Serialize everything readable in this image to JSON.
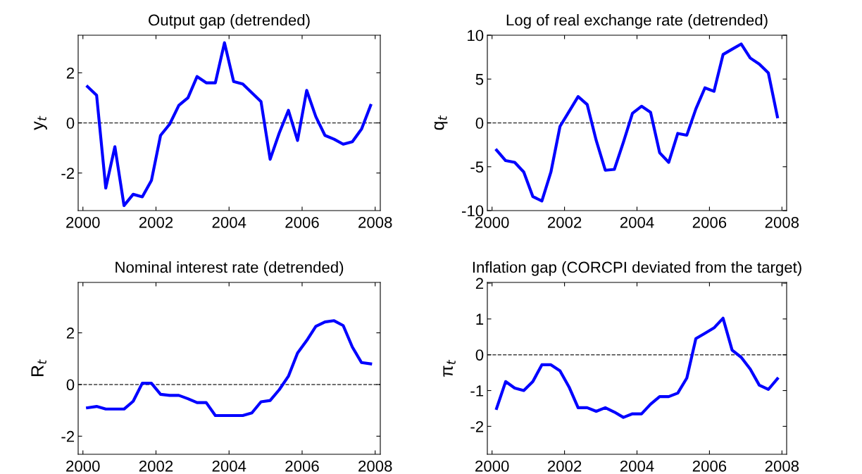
{
  "chart_data": [
    {
      "type": "line",
      "title": "Output gap (detrended)",
      "ylabel": "y$_{t}$",
      "x": [
        2000.125,
        2000.375,
        2000.625,
        2000.875,
        2001.125,
        2001.375,
        2001.625,
        2001.875,
        2002.125,
        2002.375,
        2002.625,
        2002.875,
        2003.125,
        2003.375,
        2003.625,
        2003.875,
        2004.125,
        2004.375,
        2004.625,
        2004.875,
        2005.125,
        2005.375,
        2005.625,
        2005.875,
        2006.125,
        2006.375,
        2006.625,
        2006.875,
        2007.125,
        2007.375,
        2007.625,
        2007.875
      ],
      "series": [
        {
          "color": "#0000ff",
          "values": [
            1.45,
            1.1,
            -2.6,
            -0.95,
            -3.3,
            -2.85,
            -2.95,
            -2.3,
            -0.5,
            -0.05,
            0.7,
            1.0,
            1.85,
            1.6,
            1.6,
            3.2,
            1.65,
            1.55,
            1.2,
            0.85,
            -1.45,
            -0.4,
            0.5,
            -0.7,
            1.3,
            0.25,
            -0.5,
            -0.65,
            -0.85,
            -0.75,
            -0.25,
            0.7
          ]
        }
      ],
      "xlim": [
        1999.87,
        2008.14
      ],
      "ylim": [
        -3.5,
        3.5
      ],
      "xticks": [
        2000,
        2002,
        2004,
        2006,
        2008
      ],
      "yticks": [
        -2,
        0,
        2
      ],
      "ref_lines": [
        {
          "axis": "y",
          "value": 0,
          "color": "#404040",
          "line_style": "dashed"
        }
      ],
      "grid": false,
      "line_style": "solid",
      "marker": "none"
    },
    {
      "type": "line",
      "title": "Log of real exchange rate (detrended)",
      "ylabel": "q$_{t}$",
      "x": [
        2000.125,
        2000.375,
        2000.625,
        2000.875,
        2001.125,
        2001.375,
        2001.625,
        2001.875,
        2002.125,
        2002.375,
        2002.625,
        2002.875,
        2003.125,
        2003.375,
        2003.625,
        2003.875,
        2004.125,
        2004.375,
        2004.625,
        2004.875,
        2005.125,
        2005.375,
        2005.625,
        2005.875,
        2006.125,
        2006.375,
        2006.625,
        2006.875,
        2007.125,
        2007.375,
        2007.625,
        2007.875
      ],
      "series": [
        {
          "color": "#0000ff",
          "values": [
            -3.1,
            -4.3,
            -4.5,
            -5.6,
            -8.4,
            -8.9,
            -5.6,
            -0.4,
            1.3,
            3.0,
            2.1,
            -2.0,
            -5.4,
            -5.3,
            -2.2,
            1.1,
            1.9,
            1.2,
            -3.4,
            -4.5,
            -1.2,
            -1.4,
            1.6,
            4.0,
            3.6,
            7.8,
            8.4,
            9.0,
            7.4,
            6.7,
            5.7,
            0.7
          ]
        }
      ],
      "xlim": [
        1999.87,
        2008.13
      ],
      "ylim": [
        -10,
        10
      ],
      "xticks": [
        2000,
        2002,
        2004,
        2006,
        2008
      ],
      "yticks": [
        -10,
        -5,
        0,
        5,
        10
      ],
      "ref_lines": [
        {
          "axis": "y",
          "value": 0,
          "color": "#404040",
          "line_style": "dashed"
        }
      ],
      "grid": false,
      "line_style": "solid",
      "marker": "none"
    },
    {
      "type": "line",
      "title": "Nominal interest rate (detrended)",
      "ylabel": "R$_{t}$",
      "x": [
        2000.125,
        2000.375,
        2000.625,
        2000.875,
        2001.125,
        2001.375,
        2001.625,
        2001.875,
        2002.125,
        2002.375,
        2002.625,
        2002.875,
        2003.125,
        2003.375,
        2003.625,
        2003.875,
        2004.125,
        2004.375,
        2004.625,
        2004.875,
        2005.125,
        2005.375,
        2005.625,
        2005.875,
        2006.125,
        2006.375,
        2006.625,
        2006.875,
        2007.125,
        2007.375,
        2007.625,
        2007.875
      ],
      "series": [
        {
          "color": "#0000ff",
          "values": [
            -0.9,
            -0.85,
            -0.95,
            -0.95,
            -0.95,
            -0.65,
            0.05,
            0.05,
            -0.38,
            -0.42,
            -0.42,
            -0.55,
            -0.7,
            -0.7,
            -1.2,
            -1.2,
            -1.2,
            -1.2,
            -1.1,
            -0.67,
            -0.62,
            -0.2,
            0.32,
            1.22,
            1.7,
            2.25,
            2.42,
            2.47,
            2.28,
            1.45,
            0.85,
            0.8
          ]
        }
      ],
      "xlim": [
        1999.87,
        2008.14
      ],
      "ylim": [
        -2.7,
        3.95
      ],
      "xticks": [
        2000,
        2002,
        2004,
        2006,
        2008
      ],
      "yticks": [
        -2,
        0,
        2
      ],
      "ref_lines": [
        {
          "axis": "y",
          "value": 0,
          "color": "#404040",
          "line_style": "dashed"
        }
      ],
      "grid": false,
      "line_style": "solid",
      "marker": "none"
    },
    {
      "type": "line",
      "title": "Inflation gap (CORCPI deviated from the target)",
      "ylabel": "π$_{t}$",
      "x": [
        2000.125,
        2000.375,
        2000.625,
        2000.875,
        2001.125,
        2001.375,
        2001.625,
        2001.875,
        2002.125,
        2002.375,
        2002.625,
        2002.875,
        2003.125,
        2003.375,
        2003.625,
        2003.875,
        2004.125,
        2004.375,
        2004.625,
        2004.875,
        2005.125,
        2005.375,
        2005.625,
        2005.875,
        2006.125,
        2006.375,
        2006.625,
        2006.875,
        2007.125,
        2007.375,
        2007.625,
        2007.875
      ],
      "series": [
        {
          "color": "#0000ff",
          "values": [
            -1.5,
            -0.75,
            -0.93,
            -1.0,
            -0.75,
            -0.28,
            -0.28,
            -0.45,
            -0.9,
            -1.48,
            -1.48,
            -1.58,
            -1.48,
            -1.6,
            -1.75,
            -1.65,
            -1.65,
            -1.38,
            -1.17,
            -1.17,
            -1.07,
            -0.65,
            0.45,
            0.6,
            0.75,
            1.02,
            0.13,
            -0.07,
            -0.4,
            -0.85,
            -0.97,
            -0.67
          ]
        }
      ],
      "xlim": [
        1999.87,
        2008.13
      ],
      "ylim": [
        -2.78,
        2.02
      ],
      "xticks": [
        2000,
        2002,
        2004,
        2006,
        2008
      ],
      "yticks": [
        -2,
        -1,
        0,
        1,
        2
      ],
      "ref_lines": [
        {
          "axis": "y",
          "value": 0,
          "color": "#404040",
          "line_style": "dashed"
        }
      ],
      "grid": false,
      "line_style": "solid",
      "marker": "none"
    }
  ]
}
